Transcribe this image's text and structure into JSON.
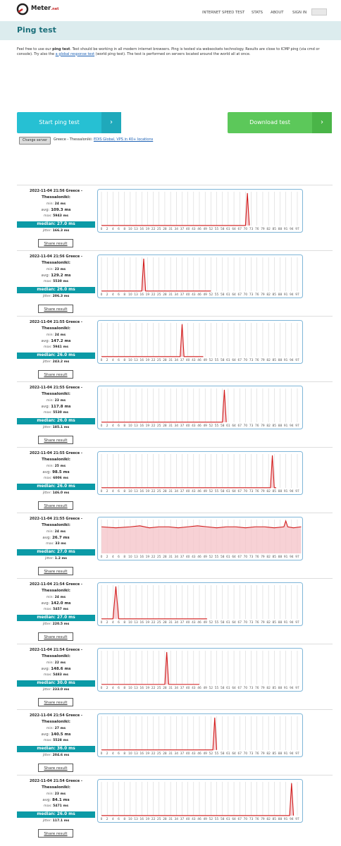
{
  "header": {
    "logo": "Meter",
    "logo_suffix": ".net",
    "nav": [
      "INTERNET SPEED TEST",
      "STATS",
      "ABOUT",
      "SIGN IN"
    ]
  },
  "page_title": "Ping test",
  "intro": {
    "before": "Feel free to use our ",
    "bold": "ping test",
    "middle": ". Test should be working in all modern internet browsers. Ping is tested via websockets technology. Results are close to ICMP ping (via cmd or console). Try also the ",
    "link": "a global response test",
    "after": " (world ping test). The test is performed on servers located around the world all at once."
  },
  "buttons": {
    "start": "Start ping test",
    "download": "Download test"
  },
  "server": {
    "button": "Change server",
    "location": "Greece - Thessaloniki:",
    "provider": "EDIS Global, VPS in 40+ locations"
  },
  "labels": {
    "min": "min:",
    "avg": "avg:",
    "max": "max:",
    "median": "median:",
    "jitter": "jitter:",
    "share": "Share result"
  },
  "xlim": [
    0,
    99
  ],
  "xticks": [
    0,
    2,
    4,
    6,
    8,
    10,
    13,
    16,
    19,
    22,
    25,
    28,
    31,
    34,
    37,
    40,
    43,
    46,
    49,
    52,
    55,
    58,
    61,
    64,
    67,
    70,
    73,
    76,
    79,
    82,
    85,
    88,
    91,
    94,
    97
  ],
  "results": [
    {
      "time": "2022-11-04 21:56",
      "location": "Greece -",
      "city": "Thessaloniki:",
      "min": "24 ms",
      "avg": "109.3 ms",
      "max": "5943 ms",
      "median": "27.0 ms",
      "jitter": "166.3 ms",
      "x": [
        0,
        70,
        71,
        72
      ],
      "values": [
        27,
        27,
        5943,
        27
      ]
    },
    {
      "time": "2022-11-04 21:56",
      "location": "Greece -",
      "city": "Thessaloniki:",
      "min": "23 ms",
      "avg": "129.2 ms",
      "max": "5530 ms",
      "median": "26.0 ms",
      "jitter": "206.3 ms",
      "x": [
        0,
        16,
        17,
        18,
        52
      ],
      "values": [
        26,
        26,
        5530,
        26,
        26
      ]
    },
    {
      "time": "2022-11-04 21:55",
      "location": "Greece -",
      "city": "Thessaloniki:",
      "min": "24 ms",
      "avg": "147.2 ms",
      "max": "5941 ms",
      "median": "26.0 ms",
      "jitter": "243.2 ms",
      "x": [
        0,
        36,
        37,
        38,
        48
      ],
      "values": [
        26,
        26,
        5941,
        26,
        26
      ]
    },
    {
      "time": "2022-11-04 21:55",
      "location": "Greece -",
      "city": "Thessaloniki:",
      "min": "23 ms",
      "avg": "117.8 ms",
      "max": "5530 ms",
      "median": "26.0 ms",
      "jitter": "185.1 ms",
      "x": [
        0,
        58,
        59,
        60
      ],
      "values": [
        26,
        26,
        5530,
        26
      ]
    },
    {
      "time": "2022-11-04 21:55",
      "location": "Greece -",
      "city": "Thessaloniki:",
      "min": "25 ms",
      "avg": "98.5 ms",
      "max": "6006 ms",
      "median": "26.0 ms",
      "jitter": "146.0 ms",
      "x": [
        0,
        83,
        84,
        85,
        86
      ],
      "values": [
        26,
        26,
        6006,
        26,
        26
      ]
    },
    {
      "time": "2022-11-04 21:55",
      "location": "Greece -",
      "city": "Thessaloniki:",
      "min": "24 ms",
      "avg": "26.7 ms",
      "max": "33 ms",
      "median": "27.0 ms",
      "jitter": "1.2 ms",
      "x": [
        0,
        5,
        10,
        15,
        20,
        25,
        30,
        35,
        40,
        45,
        50,
        55,
        60,
        65,
        70,
        75,
        80,
        85,
        90,
        91,
        92,
        95,
        99
      ],
      "values": [
        27,
        26,
        27,
        28,
        26,
        27,
        27,
        26,
        27,
        28,
        27,
        26,
        27,
        27,
        26,
        27,
        27,
        26,
        27,
        33,
        27,
        26,
        27
      ]
    },
    {
      "time": "2022-11-04 21:54",
      "location": "Greece -",
      "city": "Thessaloniki:",
      "min": "24 ms",
      "avg": "142.0 ms",
      "max": "5457 ms",
      "median": "27.0 ms",
      "jitter": "220.5 ms",
      "x": [
        0,
        4,
        5,
        6,
        50
      ],
      "values": [
        27,
        27,
        5457,
        27,
        27
      ]
    },
    {
      "time": "2022-11-04 21:54",
      "location": "Greece -",
      "city": "Thessaloniki:",
      "min": "22 ms",
      "avg": "148.6 ms",
      "max": "5483 ms",
      "median": "30.0 ms",
      "jitter": "233.0 ms",
      "x": [
        0,
        28,
        29,
        30,
        46
      ],
      "values": [
        30,
        30,
        5483,
        30,
        30
      ]
    },
    {
      "time": "2022-11-04 21:54",
      "location": "Greece -",
      "city": "Thessaloniki:",
      "min": "27 ms",
      "avg": "140.5 ms",
      "max": "5528 ms",
      "median": "36.0 ms",
      "jitter": "204.6 ms",
      "x": [
        0,
        53,
        54,
        55
      ],
      "values": [
        36,
        36,
        5528,
        36
      ]
    },
    {
      "time": "2022-11-04 21:54",
      "location": "Greece -",
      "city": "Thessaloniki:",
      "min": "23 ms",
      "avg": "84.1 ms",
      "max": "5471 ms",
      "median": "26.0 ms",
      "jitter": "117.1 ms",
      "x": [
        0,
        93,
        94,
        95
      ],
      "values": [
        26,
        26,
        5471,
        26
      ]
    }
  ]
}
